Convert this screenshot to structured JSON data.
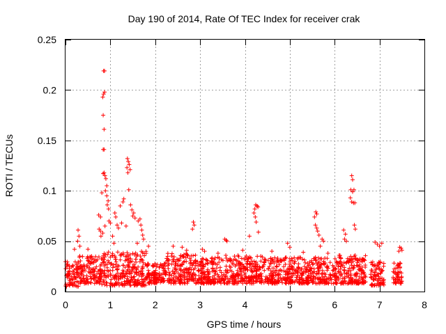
{
  "chart_data": {
    "type": "scatter",
    "title": "Day 190 of 2014, Rate Of TEC Index for receiver crak",
    "xlabel": "GPS time / hours",
    "ylabel": "ROTI / TECUs",
    "xlim": [
      0,
      8
    ],
    "ylim": [
      0,
      0.25
    ],
    "x_ticks": [
      0,
      1,
      2,
      3,
      4,
      5,
      6,
      7,
      8
    ],
    "x_tick_labels": [
      "0",
      "1",
      "2",
      "3",
      "4",
      "5",
      "6",
      "7",
      "8"
    ],
    "y_ticks": [
      0,
      0.05,
      0.1,
      0.15,
      0.2,
      0.25
    ],
    "y_tick_labels": [
      "0",
      "0.05",
      "0.1",
      "0.15",
      "0.2",
      "0.25"
    ],
    "grid": true,
    "marker": "+",
    "marker_color": "#ff0000",
    "series": [
      {
        "name": "ROTI",
        "points": [
          [
            0.85,
            0.219
          ],
          [
            0.87,
            0.219
          ],
          [
            0.83,
            0.193
          ],
          [
            0.85,
            0.196
          ],
          [
            0.87,
            0.198
          ],
          [
            0.84,
            0.175
          ],
          [
            0.86,
            0.161
          ],
          [
            0.84,
            0.141
          ],
          [
            0.86,
            0.141
          ],
          [
            0.84,
            0.117
          ],
          [
            0.86,
            0.118
          ],
          [
            0.88,
            0.115
          ],
          [
            0.9,
            0.112
          ],
          [
            0.92,
            0.105
          ],
          [
            0.81,
            0.098
          ],
          [
            0.89,
            0.1
          ],
          [
            0.92,
            0.095
          ],
          [
            0.95,
            0.09
          ],
          [
            0.93,
            0.086
          ],
          [
            0.96,
            0.082
          ],
          [
            0.74,
            0.076
          ],
          [
            0.78,
            0.074
          ],
          [
            0.75,
            0.062
          ],
          [
            0.78,
            0.06
          ],
          [
            0.79,
            0.055
          ],
          [
            0.83,
            0.058
          ],
          [
            0.88,
            0.065
          ],
          [
            0.97,
            0.07
          ],
          [
            1.0,
            0.068
          ],
          [
            0.28,
            0.061
          ],
          [
            0.3,
            0.055
          ],
          [
            0.27,
            0.05
          ],
          [
            0.32,
            0.045
          ],
          [
            0.2,
            0.042
          ],
          [
            1.38,
            0.132
          ],
          [
            1.4,
            0.129
          ],
          [
            1.42,
            0.126
          ],
          [
            1.37,
            0.123
          ],
          [
            1.44,
            0.121
          ],
          [
            1.39,
            0.118
          ],
          [
            1.41,
            0.101
          ],
          [
            1.3,
            0.092
          ],
          [
            1.28,
            0.089
          ],
          [
            1.22,
            0.085
          ],
          [
            1.45,
            0.086
          ],
          [
            1.48,
            0.081
          ],
          [
            1.52,
            0.078
          ],
          [
            1.5,
            0.075
          ],
          [
            1.55,
            0.073
          ],
          [
            1.1,
            0.078
          ],
          [
            1.12,
            0.074
          ],
          [
            1.15,
            0.066
          ],
          [
            1.18,
            0.063
          ],
          [
            1.25,
            0.068
          ],
          [
            1.35,
            0.065
          ],
          [
            1.62,
            0.07
          ],
          [
            1.66,
            0.072
          ],
          [
            1.68,
            0.066
          ],
          [
            1.7,
            0.061
          ],
          [
            1.72,
            0.056
          ],
          [
            1.74,
            0.052
          ],
          [
            1.6,
            0.048
          ],
          [
            1.05,
            0.055
          ],
          [
            1.08,
            0.048
          ],
          [
            2.85,
            0.069
          ],
          [
            2.87,
            0.066
          ],
          [
            2.83,
            0.062
          ],
          [
            3.55,
            0.052
          ],
          [
            3.58,
            0.051
          ],
          [
            3.6,
            0.05
          ],
          [
            4.22,
            0.082
          ],
          [
            4.24,
            0.086
          ],
          [
            4.27,
            0.085
          ],
          [
            4.29,
            0.084
          ],
          [
            4.2,
            0.078
          ],
          [
            4.23,
            0.074
          ],
          [
            4.25,
            0.069
          ],
          [
            4.3,
            0.059
          ],
          [
            4.1,
            0.055
          ],
          [
            5.58,
            0.079
          ],
          [
            5.6,
            0.077
          ],
          [
            5.55,
            0.074
          ],
          [
            5.57,
            0.066
          ],
          [
            5.6,
            0.063
          ],
          [
            5.62,
            0.06
          ],
          [
            5.65,
            0.056
          ],
          [
            5.72,
            0.052
          ],
          [
            5.75,
            0.05
          ],
          [
            5.68,
            0.045
          ],
          [
            6.38,
            0.115
          ],
          [
            6.4,
            0.111
          ],
          [
            6.36,
            0.101
          ],
          [
            6.4,
            0.099
          ],
          [
            6.43,
            0.101
          ],
          [
            6.35,
            0.093
          ],
          [
            6.38,
            0.089
          ],
          [
            6.42,
            0.088
          ],
          [
            6.45,
            0.088
          ],
          [
            6.44,
            0.066
          ],
          [
            6.46,
            0.062
          ],
          [
            6.2,
            0.061
          ],
          [
            6.24,
            0.057
          ],
          [
            6.22,
            0.052
          ],
          [
            6.26,
            0.05
          ],
          [
            6.9,
            0.049
          ],
          [
            6.95,
            0.047
          ],
          [
            7.05,
            0.048
          ],
          [
            7.0,
            0.045
          ],
          [
            7.45,
            0.044
          ],
          [
            7.48,
            0.043
          ],
          [
            7.5,
            0.041
          ],
          [
            7.43,
            0.04
          ],
          [
            0.5,
            0.042
          ],
          [
            1.85,
            0.045
          ],
          [
            2.4,
            0.045
          ],
          [
            2.6,
            0.044
          ],
          [
            2.7,
            0.041
          ],
          [
            3.05,
            0.042
          ],
          [
            3.1,
            0.04
          ],
          [
            3.4,
            0.038
          ],
          [
            3.95,
            0.041
          ],
          [
            4.6,
            0.04
          ],
          [
            4.95,
            0.048
          ],
          [
            5.0,
            0.044
          ],
          [
            5.3,
            0.039
          ],
          [
            5.85,
            0.038
          ],
          [
            6.1,
            0.036
          ]
        ],
        "dense_band": {
          "description": "dense cluster of points between 0.008 and 0.035",
          "segments": [
            [
              0.0,
              0.3,
              0.005,
              0.03
            ],
            [
              0.3,
              0.8,
              0.008,
              0.036
            ],
            [
              0.8,
              1.8,
              0.006,
              0.04
            ],
            [
              1.8,
              2.2,
              0.008,
              0.028
            ],
            [
              2.2,
              2.9,
              0.008,
              0.038
            ],
            [
              2.9,
              3.5,
              0.008,
              0.034
            ],
            [
              3.5,
              4.4,
              0.008,
              0.036
            ],
            [
              4.4,
              5.2,
              0.008,
              0.034
            ],
            [
              5.2,
              5.9,
              0.008,
              0.034
            ],
            [
              5.9,
              6.7,
              0.008,
              0.036
            ],
            [
              6.8,
              7.1,
              0.006,
              0.03
            ],
            [
              7.3,
              7.5,
              0.008,
              0.03
            ]
          ]
        }
      }
    ]
  }
}
